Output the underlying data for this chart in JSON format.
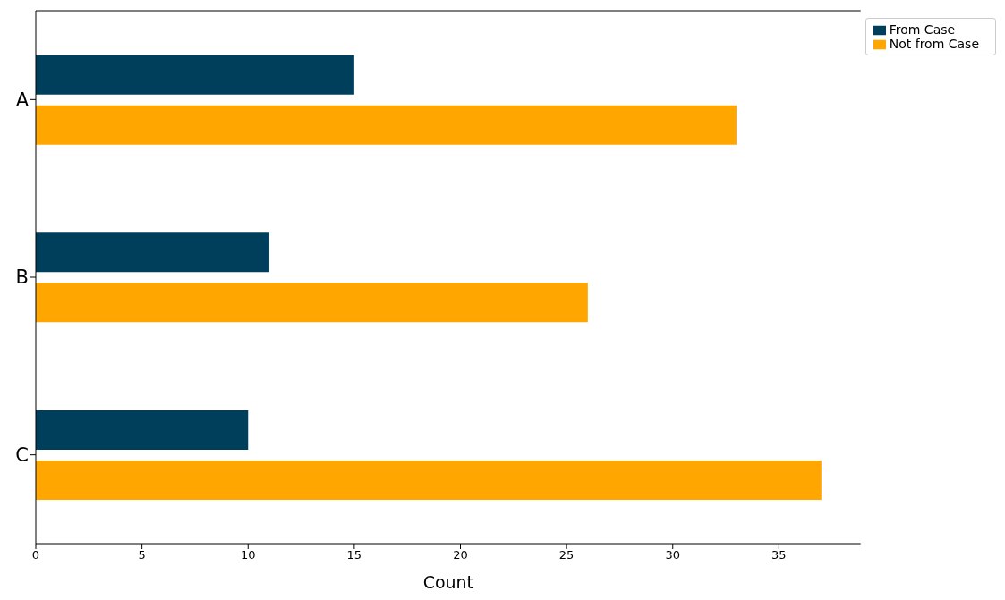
{
  "chart_data": {
    "type": "bar",
    "orientation": "horizontal",
    "xlabel": "Count",
    "categories": [
      "A",
      "B",
      "C"
    ],
    "series": [
      {
        "name": "From Case",
        "color": "#003f5c",
        "values": [
          15,
          11,
          10
        ]
      },
      {
        "name": "Not from Case",
        "color": "#ffa600",
        "values": [
          33,
          26,
          37
        ]
      }
    ],
    "xlim": [
      0,
      38.85
    ],
    "xticks": [
      0,
      5,
      10,
      15,
      20,
      25,
      30,
      35
    ],
    "grid": false,
    "legend": "top right"
  }
}
